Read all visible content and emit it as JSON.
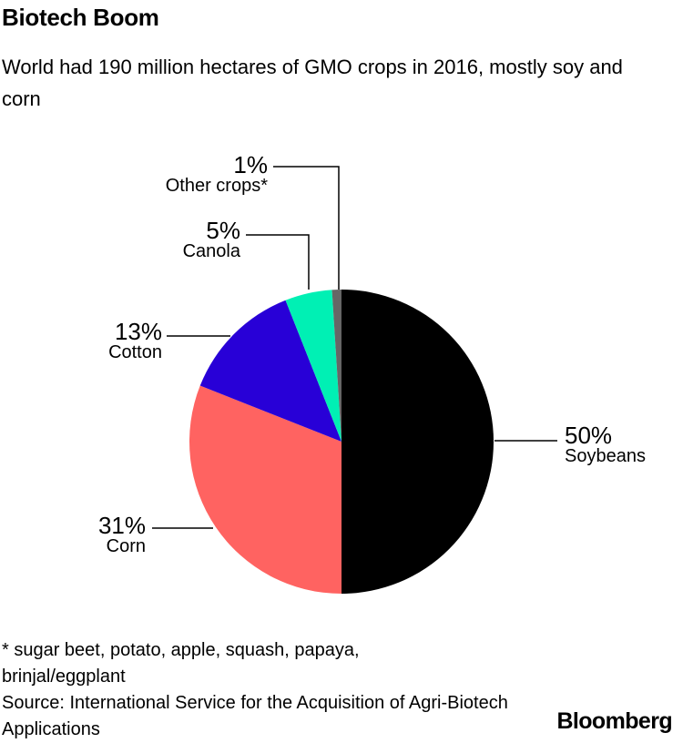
{
  "header": {
    "title": "Biotech Boom",
    "subtitle": "World had 190 million hectares of GMO crops in 2016, mostly soy and corn"
  },
  "chart_data": {
    "type": "pie",
    "title": "Biotech Boom",
    "subtitle": "World had 190 million hectares of GMO crops in 2016, mostly soy and corn",
    "slices": [
      {
        "label": "Soybeans",
        "value": 50,
        "value_label": "50%",
        "color": "#000000"
      },
      {
        "label": "Corn",
        "value": 31,
        "value_label": "31%",
        "color": "#ff6361"
      },
      {
        "label": "Cotton",
        "value": 13,
        "value_label": "13%",
        "color": "#2800d7"
      },
      {
        "label": "Canola",
        "value": 5,
        "value_label": "5%",
        "color": "#00f0b4"
      },
      {
        "label": "Other crops*",
        "value": 1,
        "value_label": "1%",
        "color": "#666666"
      }
    ],
    "start": "12 o'clock",
    "direction": "clockwise",
    "legend": "none"
  },
  "footer": {
    "footnote": "* sugar beet, potato, apple, squash, papaya, brinjal/eggplant",
    "source": "Source: International Service for the Acquisition of Agri-Biotech Applications",
    "brand": "Bloomberg"
  }
}
